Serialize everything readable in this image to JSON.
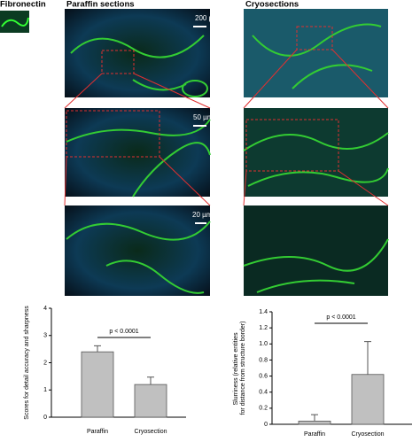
{
  "panels": {
    "stain": "Fibronectin",
    "left_title": "Paraffin sections",
    "right_title": "Cryosections",
    "scale_bars": [
      "200 µm",
      "50 µm",
      "20 µm"
    ]
  },
  "chart_data": [
    {
      "type": "bar",
      "ylabel": "Scores for detail accuracy and sharpness",
      "categories": [
        "Paraffin",
        "Cryosection"
      ],
      "values": [
        2.4,
        1.2
      ],
      "errors": [
        0.22,
        0.27
      ],
      "color": "#c0c0c0",
      "ylim": [
        0,
        4
      ],
      "yticks": [
        0,
        1,
        2,
        3,
        4
      ],
      "annotation": "p < 0.0001"
    },
    {
      "type": "bar",
      "ylabel": "Slurriness (relative entities for distance from structure border)",
      "categories": [
        "Paraffin",
        "Cryosection"
      ],
      "values": [
        0.04,
        0.62
      ],
      "errors": [
        0.08,
        0.41
      ],
      "color": "#c0c0c0",
      "ylim": [
        0,
        1.4
      ],
      "yticks": [
        0,
        0.2,
        0.4,
        0.6,
        0.8,
        {
          "value": 1,
          "label": "1.0"
        },
        1.2,
        1.4
      ],
      "annotation": "p < 0.0001"
    }
  ]
}
